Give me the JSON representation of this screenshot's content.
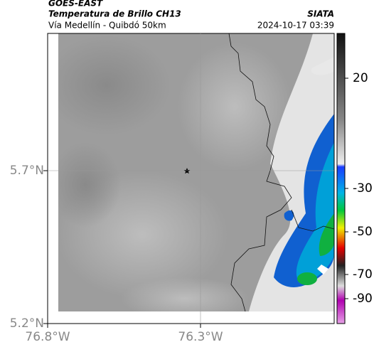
{
  "header": {
    "satellite": "GOES-EAST",
    "product": "Temperatura de Brillo CH13",
    "region": "Vía Medellín - Quibdó 50km",
    "source": "SIATA",
    "datetime": "2024-10-17 03:39"
  },
  "map": {
    "lat_ticks": [
      {
        "value": 5.7,
        "label": "5.7°N"
      },
      {
        "value": 5.2,
        "label": "5.2°N"
      }
    ],
    "lon_ticks": [
      {
        "value": -76.8,
        "label": "76.8°W"
      },
      {
        "value": -76.3,
        "label": "76.3°W"
      }
    ]
  },
  "colorbar": {
    "ticks": [
      20,
      -30,
      -50,
      -70,
      -90
    ]
  }
}
